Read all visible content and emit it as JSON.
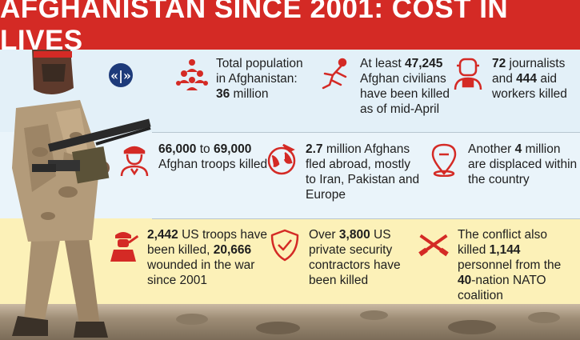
{
  "title": "AFGHANISTAN SINCE 2001: COST IN LIVES",
  "logo": "«|»",
  "facts": [
    {
      "id": "population",
      "icon": "population-icon",
      "pre": "Total population in Afghanistan: ",
      "num": "36",
      "post": " million"
    },
    {
      "id": "civilians",
      "icon": "civilian-casualty-icon",
      "pre": "At least ",
      "num": "47,245",
      "post": " Afghan civilians have been killed as of mid-April"
    },
    {
      "id": "journalists",
      "icon": "journalist-icon",
      "num": "72",
      "mid": " journalists and ",
      "num2": "444",
      "post": " aid workers killed"
    },
    {
      "id": "afghan-troops",
      "icon": "afghan-soldier-icon",
      "num": "66,000",
      "mid": " to ",
      "num2": "69,000",
      "post": " Afghan troops killed"
    },
    {
      "id": "refugees",
      "icon": "globe-plane-icon",
      "num": "2.7",
      "post": " million Afghans fled abroad, mostly to Iran, Pakistan and Europe"
    },
    {
      "id": "displaced",
      "icon": "location-pin-icon",
      "pre": "Another ",
      "num": "4",
      "post": " million are displaced within the country"
    },
    {
      "id": "us-troops",
      "icon": "us-soldier-icon",
      "num": "2,442",
      "mid": " US troops have been killed, ",
      "num2": "20,666",
      "post": " wounded in the war since 2001"
    },
    {
      "id": "contractors",
      "icon": "shield-check-icon",
      "pre": "Over ",
      "num": "3,800",
      "post": " US private security contractors have been killed"
    },
    {
      "id": "nato",
      "icon": "crossed-rifles-icon",
      "pre": "The conflict also killed ",
      "num": "1,144",
      "mid": " personnel from the ",
      "num2": "40",
      "post": "-nation NATO coalition"
    }
  ],
  "colors": {
    "banner": "#d42a25",
    "icon": "#d42a25",
    "band_blue": "#e3f0f8",
    "band_yellow": "#fcf1b8",
    "logo": "#1d3a7a"
  }
}
